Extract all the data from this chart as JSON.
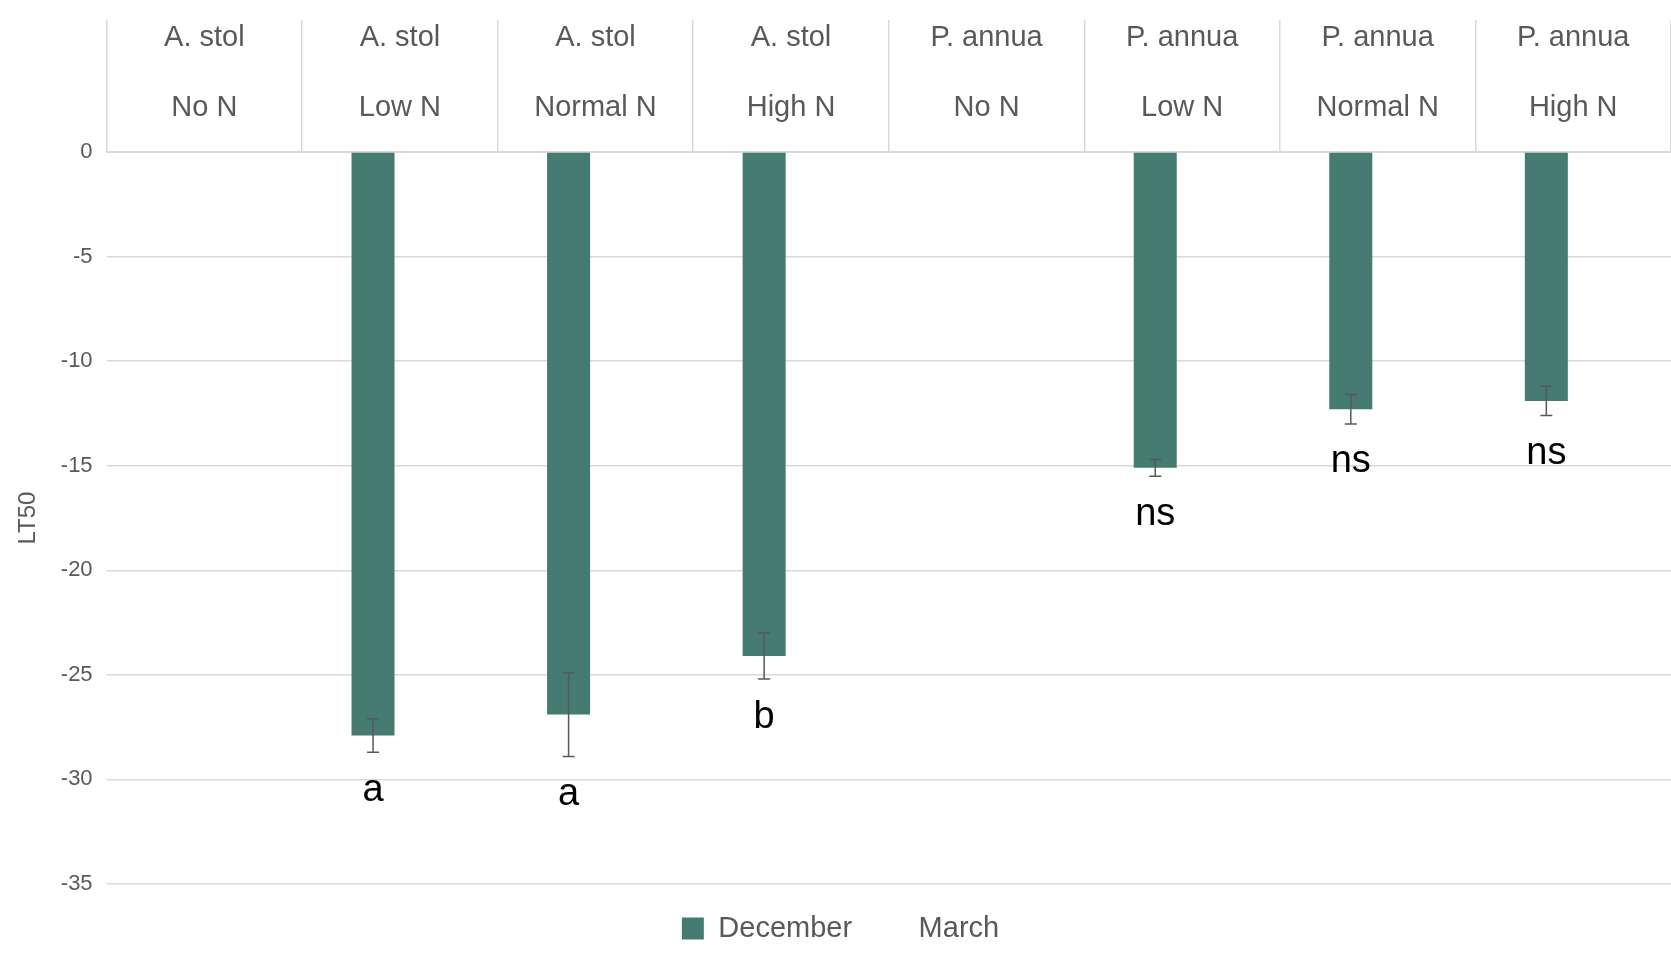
{
  "chart_data": {
    "type": "bar",
    "ylabel": "LT50",
    "categories": [
      "A. stol\nNo N",
      "A. stol\nLow N",
      "A. stol\nNormal N",
      "A. stol\nHigh N",
      "P. annua\nNo N",
      "P. annua\nLow N",
      "P. annua\nNormal N",
      "P. annua\nHigh N"
    ],
    "series": [
      {
        "name": "December",
        "color": "#457b70",
        "values": [
          null,
          -27.9,
          -26.9,
          -24.1,
          null,
          -15.1,
          -12.3,
          -11.9
        ],
        "errors": [
          null,
          0.8,
          2.0,
          1.1,
          null,
          0.4,
          0.7,
          0.7
        ]
      },
      {
        "name": "March",
        "values": [
          null,
          null,
          null,
          null,
          null,
          null,
          null,
          null
        ]
      }
    ],
    "ylim": [
      -35,
      0
    ],
    "yticks": [
      0,
      -5,
      -10,
      -15,
      -20,
      -25,
      -30,
      -35
    ],
    "grid": "y",
    "legend": "bottom",
    "annotations": [
      "a",
      "a",
      "b",
      "ns",
      "ns",
      "ns"
    ]
  }
}
